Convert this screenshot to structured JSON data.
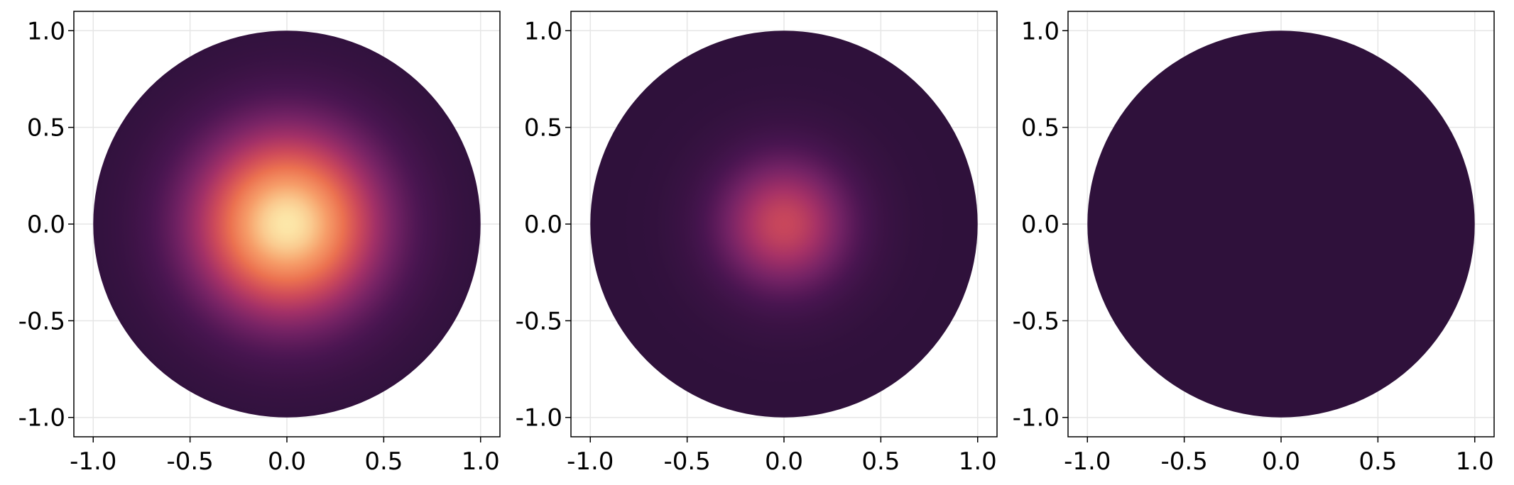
{
  "chart_data": [
    {
      "type": "heatmap",
      "title": "",
      "xlabel": "",
      "ylabel": "",
      "xlim": [
        -1.1,
        1.1
      ],
      "ylim": [
        -1.1,
        1.1
      ],
      "grid": true,
      "domain_shape": "unit-disk",
      "domain_radius": 1.0,
      "field": {
        "kind": "radial-gaussian",
        "center": [
          0.0,
          0.0
        ],
        "peak": 1.0,
        "width": 0.35
      },
      "x_ticks": [
        "-1.0",
        "-0.5",
        "0.0",
        "0.5",
        "1.0"
      ],
      "y_ticks": [
        "1.0",
        "0.5",
        "0.0",
        "-0.5",
        "-1.0"
      ]
    },
    {
      "type": "heatmap",
      "title": "",
      "xlabel": "",
      "ylabel": "",
      "xlim": [
        -1.1,
        1.1
      ],
      "ylim": [
        -1.1,
        1.1
      ],
      "grid": true,
      "domain_shape": "unit-disk",
      "domain_radius": 1.0,
      "field": {
        "kind": "radial-gaussian",
        "center": [
          0.0,
          0.0
        ],
        "peak": 0.55,
        "width": 0.25
      },
      "x_ticks": [
        "-1.0",
        "-0.5",
        "0.0",
        "0.5",
        "1.0"
      ],
      "y_ticks": [
        "1.0",
        "0.5",
        "0.0",
        "-0.5",
        "-1.0"
      ]
    },
    {
      "type": "heatmap",
      "title": "",
      "xlabel": "",
      "ylabel": "",
      "xlim": [
        -1.1,
        1.1
      ],
      "ylim": [
        -1.1,
        1.1
      ],
      "grid": true,
      "domain_shape": "unit-disk",
      "domain_radius": 1.0,
      "field": {
        "kind": "radial-gaussian",
        "center": [
          0.0,
          0.0
        ],
        "peak": 0.0,
        "width": 0.25
      },
      "x_ticks": [
        "-1.0",
        "-0.5",
        "0.0",
        "0.5",
        "1.0"
      ],
      "y_ticks": [
        "1.0",
        "0.5",
        "0.0",
        "-0.5",
        "-1.0"
      ]
    }
  ],
  "colormap": {
    "name": "magma",
    "stops": [
      "#2f113b",
      "#4a1551",
      "#752365",
      "#a33067",
      "#cf4a59",
      "#ed7350",
      "#f7a36c",
      "#fce7a9"
    ]
  },
  "colors": {
    "background": "#ffffff",
    "grid": "#e6e6e6",
    "frame": "#000000"
  }
}
